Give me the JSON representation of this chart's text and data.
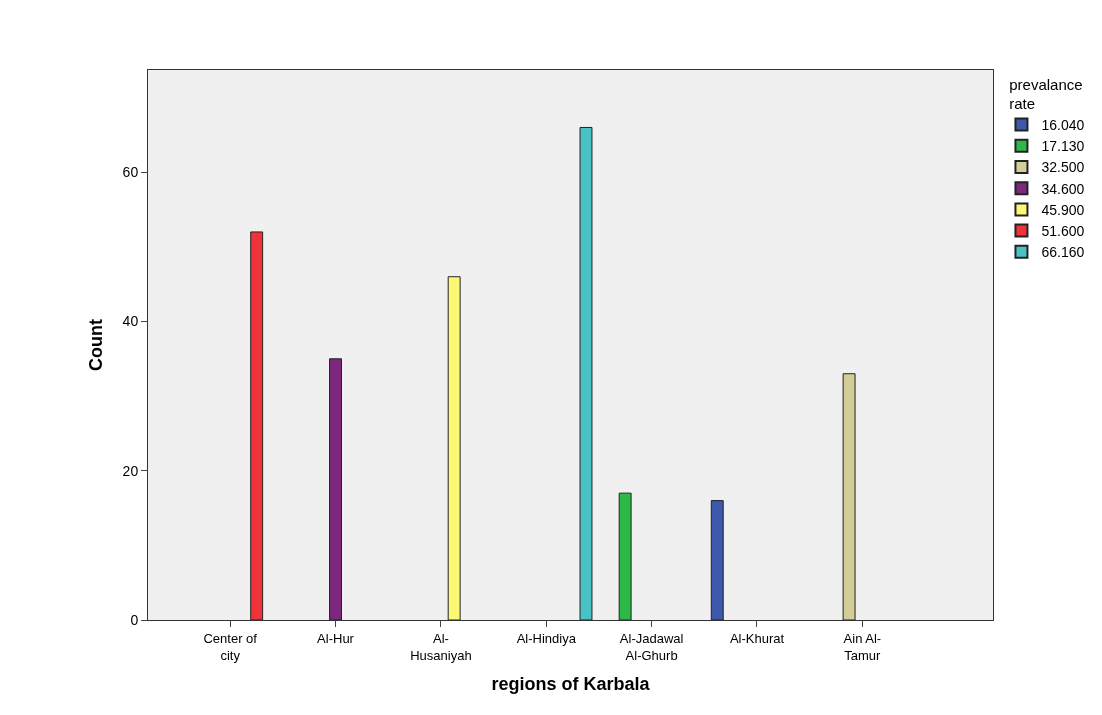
{
  "chart_data": {
    "type": "bar",
    "xlabel": "regions of Karbala",
    "ylabel": "Count",
    "legend_title": "prevalance\nrate",
    "categories": [
      "Center of\ncity",
      "Al-Hur",
      "Al-\nHusaniyah",
      "Al-Hindiya",
      "Al-Jadawal\nAl-Ghurb",
      "Al-Khurat",
      "Ain Al-\nTamur"
    ],
    "series": [
      {
        "name": "16.040",
        "color": "#3e58ac",
        "values": [
          null,
          null,
          null,
          null,
          null,
          16,
          null
        ]
      },
      {
        "name": "17.130",
        "color": "#2eb848",
        "values": [
          null,
          null,
          null,
          null,
          17,
          null,
          null
        ]
      },
      {
        "name": "32.500",
        "color": "#d3ce97",
        "values": [
          null,
          null,
          null,
          null,
          null,
          null,
          33
        ]
      },
      {
        "name": "34.600",
        "color": "#7c287d",
        "values": [
          null,
          35,
          null,
          null,
          null,
          null,
          null
        ]
      },
      {
        "name": "45.900",
        "color": "#fbf873",
        "values": [
          null,
          null,
          46,
          null,
          null,
          null,
          null
        ]
      },
      {
        "name": "51.600",
        "color": "#ef3338",
        "values": [
          52,
          null,
          null,
          null,
          null,
          null,
          null
        ]
      },
      {
        "name": "66.160",
        "color": "#48c2c5",
        "values": [
          null,
          null,
          null,
          66,
          null,
          null,
          null
        ]
      }
    ],
    "ylim": [
      0,
      73.7
    ],
    "yticks": [
      0,
      20,
      40,
      60
    ],
    "grid": false,
    "legend": "top right"
  }
}
